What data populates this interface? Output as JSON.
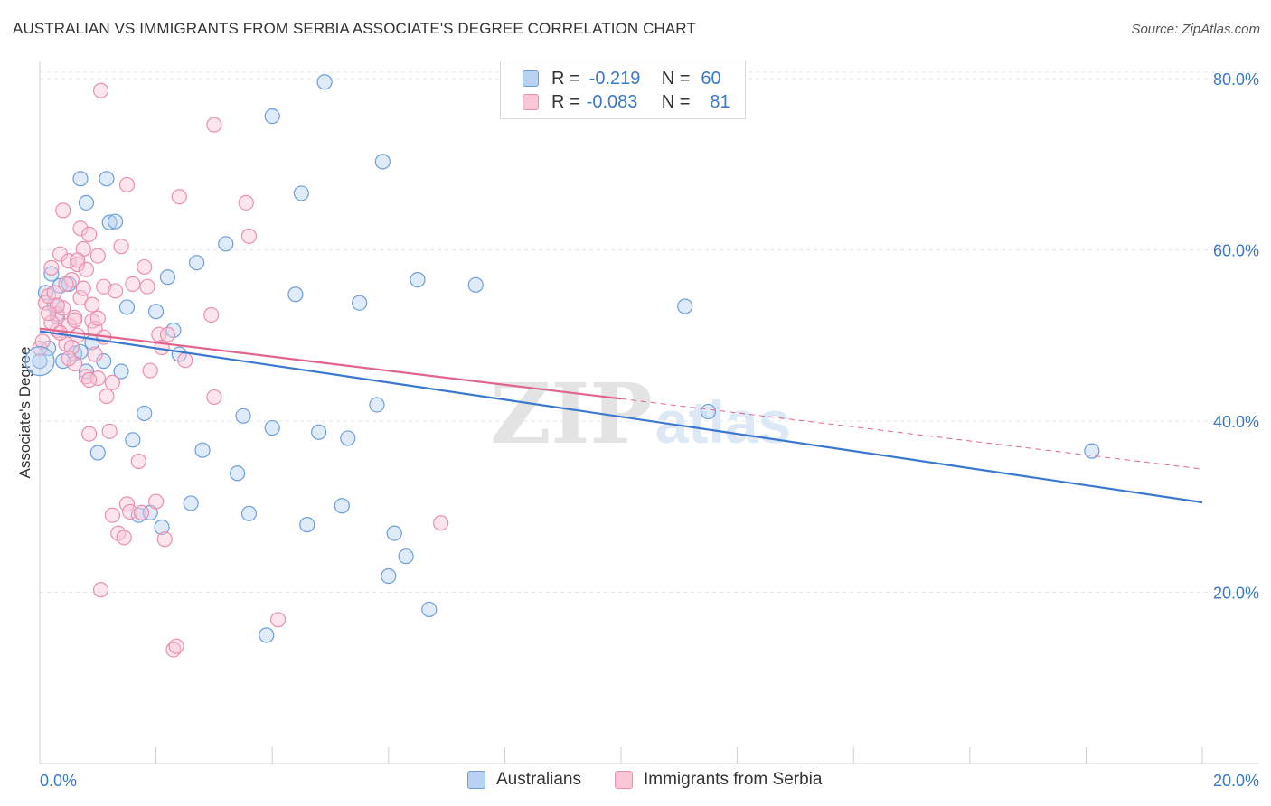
{
  "title": "AUSTRALIAN VS IMMIGRANTS FROM SERBIA ASSOCIATE'S DEGREE CORRELATION CHART",
  "source": "Source: ZipAtlas.com",
  "watermark": {
    "zip": "ZIP",
    "atlas": "atlas"
  },
  "legend_top": {
    "rows": [
      {
        "r_label": "R =",
        "r_value": "-0.219",
        "n_label": "N =",
        "n_value": "60"
      },
      {
        "r_label": "R =",
        "r_value": "-0.083",
        "n_label": "N =",
        "n_value": "81"
      }
    ]
  },
  "colors": {
    "blue_fill": "#b9d2f2",
    "blue_stroke": "#6c9edb",
    "blue_line": "#3a78d0",
    "pink_fill": "#f9c6d6",
    "pink_stroke": "#ec8fae",
    "pink_line": "#e2648d",
    "axis_label": "#3a78c9",
    "grid": "#e6e6e6"
  },
  "chart_data": {
    "type": "scatter",
    "title": "AUSTRALIAN VS IMMIGRANTS FROM SERBIA ASSOCIATE'S DEGREE CORRELATION CHART",
    "xlabel": "",
    "ylabel": "Associate's Degree",
    "xlim": [
      0,
      20
    ],
    "ylim": [
      0,
      82
    ],
    "x_tick_labels": [
      "0.0%",
      "20.0%"
    ],
    "y_ticks": [
      20,
      40,
      60,
      80
    ],
    "y_tick_labels": [
      "20.0%",
      "40.0%",
      "60.0%",
      "80.0%"
    ],
    "grid": true,
    "legend_position": "bottom",
    "series": [
      {
        "name": "Australians",
        "color": "#6c9edb",
        "points": [
          [
            0.0,
            47.0
          ],
          [
            0.1,
            55.0
          ],
          [
            0.2,
            57.2
          ],
          [
            0.3,
            52.2
          ],
          [
            0.35,
            55.8
          ],
          [
            0.4,
            47.0
          ],
          [
            0.5,
            56.0
          ],
          [
            0.6,
            47.9
          ],
          [
            0.7,
            48.1
          ],
          [
            0.7,
            68.3
          ],
          [
            0.8,
            45.8
          ],
          [
            0.8,
            65.5
          ],
          [
            0.9,
            49.2
          ],
          [
            1.0,
            36.3
          ],
          [
            1.1,
            47.0
          ],
          [
            1.15,
            68.3
          ],
          [
            1.2,
            63.2
          ],
          [
            1.3,
            63.3
          ],
          [
            1.4,
            45.8
          ],
          [
            1.5,
            53.3
          ],
          [
            1.6,
            37.8
          ],
          [
            1.7,
            29.0
          ],
          [
            1.8,
            40.9
          ],
          [
            1.9,
            29.3
          ],
          [
            2.0,
            52.8
          ],
          [
            2.1,
            27.6
          ],
          [
            2.2,
            56.8
          ],
          [
            2.3,
            50.6
          ],
          [
            2.4,
            47.8
          ],
          [
            2.6,
            30.4
          ],
          [
            2.7,
            58.5
          ],
          [
            2.8,
            36.6
          ],
          [
            3.2,
            60.7
          ],
          [
            3.4,
            33.9
          ],
          [
            3.5,
            40.6
          ],
          [
            3.6,
            29.2
          ],
          [
            3.9,
            15.0
          ],
          [
            4.0,
            39.2
          ],
          [
            4.0,
            75.6
          ],
          [
            4.4,
            54.8
          ],
          [
            4.5,
            66.6
          ],
          [
            4.6,
            27.9
          ],
          [
            4.8,
            38.7
          ],
          [
            4.9,
            79.6
          ],
          [
            5.2,
            30.1
          ],
          [
            5.3,
            38.0
          ],
          [
            5.5,
            53.8
          ],
          [
            5.8,
            41.9
          ],
          [
            5.9,
            70.3
          ],
          [
            6.0,
            21.9
          ],
          [
            6.1,
            26.9
          ],
          [
            6.3,
            24.2
          ],
          [
            6.5,
            56.5
          ],
          [
            6.7,
            18.0
          ],
          [
            7.5,
            55.9
          ],
          [
            11.1,
            53.4
          ],
          [
            11.5,
            41.1
          ],
          [
            18.1,
            36.5
          ],
          [
            0.15,
            48.5
          ],
          [
            0.25,
            53.5
          ]
        ]
      },
      {
        "name": "Immigrants from Serbia",
        "color": "#ec8fae",
        "points": [
          [
            0.0,
            48.5
          ],
          [
            0.05,
            49.3
          ],
          [
            0.1,
            53.8
          ],
          [
            0.15,
            54.6
          ],
          [
            0.2,
            57.9
          ],
          [
            0.25,
            55.0
          ],
          [
            0.3,
            52.5
          ],
          [
            0.3,
            50.6
          ],
          [
            0.35,
            59.5
          ],
          [
            0.4,
            53.2
          ],
          [
            0.4,
            64.6
          ],
          [
            0.45,
            49.0
          ],
          [
            0.5,
            51.2
          ],
          [
            0.5,
            58.7
          ],
          [
            0.55,
            56.5
          ],
          [
            0.6,
            52.1
          ],
          [
            0.6,
            46.7
          ],
          [
            0.65,
            58.3
          ],
          [
            0.7,
            62.5
          ],
          [
            0.7,
            54.4
          ],
          [
            0.75,
            60.1
          ],
          [
            0.8,
            45.2
          ],
          [
            0.8,
            57.7
          ],
          [
            0.85,
            38.5
          ],
          [
            0.85,
            61.8
          ],
          [
            0.9,
            51.7
          ],
          [
            0.9,
            53.6
          ],
          [
            0.95,
            50.8
          ],
          [
            1.0,
            45.0
          ],
          [
            1.0,
            59.3
          ],
          [
            1.05,
            78.6
          ],
          [
            1.1,
            49.8
          ],
          [
            1.1,
            55.7
          ],
          [
            1.15,
            42.9
          ],
          [
            1.2,
            38.8
          ],
          [
            1.25,
            29.0
          ],
          [
            1.3,
            55.2
          ],
          [
            1.35,
            26.9
          ],
          [
            1.4,
            60.4
          ],
          [
            1.45,
            26.4
          ],
          [
            1.5,
            67.6
          ],
          [
            1.5,
            30.3
          ],
          [
            1.55,
            29.4
          ],
          [
            1.6,
            56.0
          ],
          [
            1.7,
            35.3
          ],
          [
            1.8,
            58.0
          ],
          [
            1.85,
            55.7
          ],
          [
            1.9,
            45.9
          ],
          [
            2.0,
            30.6
          ],
          [
            2.05,
            50.1
          ],
          [
            2.1,
            48.6
          ],
          [
            2.15,
            26.2
          ],
          [
            2.2,
            50.1
          ],
          [
            2.3,
            13.3
          ],
          [
            2.35,
            13.7
          ],
          [
            2.4,
            66.2
          ],
          [
            2.5,
            47.1
          ],
          [
            2.95,
            52.4
          ],
          [
            3.0,
            42.8
          ],
          [
            3.0,
            74.6
          ],
          [
            3.55,
            65.5
          ],
          [
            3.6,
            61.6
          ],
          [
            4.1,
            16.8
          ],
          [
            6.9,
            28.1
          ],
          [
            1.05,
            20.3
          ],
          [
            0.6,
            51.8
          ],
          [
            0.65,
            50.0
          ],
          [
            0.75,
            55.5
          ],
          [
            0.95,
            47.8
          ],
          [
            0.2,
            51.5
          ],
          [
            0.3,
            53.5
          ],
          [
            0.55,
            48.6
          ],
          [
            0.85,
            44.8
          ],
          [
            1.25,
            44.5
          ],
          [
            0.45,
            56.0
          ],
          [
            0.65,
            58.8
          ],
          [
            1.0,
            52.0
          ],
          [
            1.75,
            29.3
          ],
          [
            0.15,
            52.6
          ],
          [
            0.35,
            50.3
          ],
          [
            0.5,
            47.3
          ]
        ]
      }
    ],
    "trend_lines": [
      {
        "series": "Australians",
        "x": [
          0,
          20
        ],
        "y": [
          50.5,
          30.5
        ]
      },
      {
        "series": "Immigrants from Serbia",
        "x": [
          0,
          10
        ],
        "y": [
          50.8,
          42.6
        ],
        "dashed_extension": {
          "x": [
            10,
            20
          ],
          "y": [
            42.6,
            34.4
          ]
        }
      }
    ]
  },
  "bottom_legend": {
    "items": [
      {
        "label": "Australians"
      },
      {
        "label": "Immigrants from Serbia"
      }
    ]
  }
}
